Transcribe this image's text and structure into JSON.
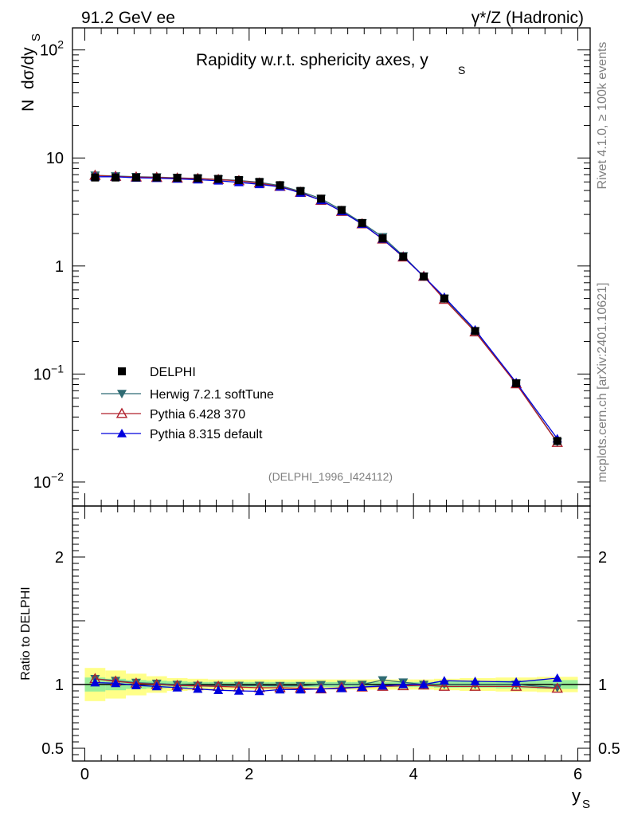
{
  "header": {
    "left_title": "91.2 GeV ee",
    "right_title": "γ*/Z (Hadronic)"
  },
  "side_labels": {
    "rivet": "Rivet 4.1.0, ≥ 100k events",
    "mcplots": "mcplots.cern.ch [arXiv:2401.10621]"
  },
  "chart_data": {
    "type": "line",
    "title": "Rapidity w.r.t. sphericity axes, y",
    "title_subscript": "S",
    "analysis_id": "(DELPHI_1996_I424112)",
    "ylabel_main_prefix": "N",
    "ylabel_main": "dσ/dy",
    "ylabel_main_subscript": "S",
    "ylabel_ratio": "Ratio to DELPHI",
    "xlabel": "y",
    "xlabel_subscript": "S",
    "xlim": [
      -0.15,
      6.15
    ],
    "ylim_main": [
      0.006,
      160
    ],
    "ylim_ratio": [
      0.4,
      2.4
    ],
    "y_scale_main": "log",
    "x_ticks": [
      "0",
      "2",
      "4",
      "6"
    ],
    "y_ticks_main": [
      {
        "base": "10",
        "exp": "−2"
      },
      {
        "base": "10",
        "exp": "−1"
      },
      {
        "base": "1",
        "exp": ""
      },
      {
        "base": "10",
        "exp": ""
      },
      {
        "base": "10",
        "exp": "2"
      }
    ],
    "y_ticks_ratio": [
      "0.5",
      "1",
      "2"
    ],
    "legend_position": "lower-left",
    "x": [
      0.125,
      0.375,
      0.625,
      0.875,
      1.125,
      1.375,
      1.625,
      1.875,
      2.125,
      2.375,
      2.625,
      2.875,
      3.125,
      3.375,
      3.625,
      3.875,
      4.125,
      4.375,
      4.75,
      5.25,
      5.75
    ],
    "series": [
      {
        "name": "DELPHI",
        "color": "#000000",
        "marker": "square",
        "values": [
          6.6,
          6.6,
          6.6,
          6.6,
          6.55,
          6.5,
          6.4,
          6.25,
          6.0,
          5.6,
          4.95,
          4.2,
          3.3,
          2.5,
          1.8,
          1.22,
          0.8,
          0.5,
          0.25,
          0.082,
          0.024
        ]
      },
      {
        "name": "Herwig 7.2.1 softTune",
        "color": "#2f6b73",
        "marker": "triangle-down",
        "values": [
          6.9,
          6.8,
          6.7,
          6.65,
          6.55,
          6.45,
          6.35,
          6.2,
          5.95,
          5.55,
          4.9,
          4.2,
          3.3,
          2.5,
          1.86,
          1.24,
          0.8,
          0.5,
          0.25,
          0.082,
          0.0234
        ]
      },
      {
        "name": "Pythia 6.428 370",
        "color": "#b0202c",
        "marker": "triangle-open",
        "values": [
          6.9,
          6.75,
          6.65,
          6.6,
          6.5,
          6.45,
          6.3,
          6.15,
          5.85,
          5.45,
          4.8,
          4.05,
          3.2,
          2.45,
          1.77,
          1.21,
          0.8,
          0.49,
          0.245,
          0.081,
          0.0232
        ]
      },
      {
        "name": "Pythia 8.315 default",
        "color": "#0000dd",
        "marker": "triangle-up",
        "values": [
          6.7,
          6.7,
          6.55,
          6.5,
          6.4,
          6.3,
          6.15,
          5.95,
          5.7,
          5.4,
          4.75,
          4.05,
          3.2,
          2.45,
          1.78,
          1.22,
          0.8,
          0.515,
          0.257,
          0.0835,
          0.0252
        ]
      }
    ],
    "ratio_series": [
      {
        "name": "Herwig 7.2.1 softTune",
        "values": [
          1.045,
          1.03,
          1.015,
          1.008,
          1.0,
          0.992,
          0.992,
          0.992,
          0.992,
          0.99,
          0.99,
          0.998,
          1.0,
          1.0,
          1.035,
          1.018,
          1.0,
          1.0,
          1.0,
          1.0,
          0.975
        ]
      },
      {
        "name": "Pythia 6.428 370",
        "values": [
          1.045,
          1.025,
          1.01,
          1.0,
          0.992,
          0.99,
          0.985,
          0.98,
          0.975,
          0.975,
          0.97,
          0.965,
          0.975,
          0.98,
          0.985,
          0.99,
          0.995,
          0.985,
          0.985,
          0.985,
          0.97
        ]
      },
      {
        "name": "Pythia 8.315 default",
        "values": [
          1.015,
          1.01,
          0.993,
          0.985,
          0.975,
          0.965,
          0.955,
          0.95,
          0.947,
          0.96,
          0.96,
          0.965,
          0.97,
          0.98,
          0.99,
          1.0,
          1.0,
          1.03,
          1.025,
          1.02,
          1.05
        ]
      }
    ],
    "uncertainty_band": {
      "green_half_width": [
        0.055,
        0.045,
        0.035,
        0.03,
        0.025,
        0.02,
        0.02,
        0.02,
        0.02,
        0.02,
        0.02,
        0.02,
        0.02,
        0.02,
        0.02,
        0.02,
        0.02,
        0.025,
        0.025,
        0.03,
        0.035
      ],
      "yellow_half_width": [
        0.13,
        0.11,
        0.085,
        0.065,
        0.05,
        0.045,
        0.04,
        0.04,
        0.04,
        0.04,
        0.04,
        0.04,
        0.04,
        0.04,
        0.04,
        0.04,
        0.04,
        0.045,
        0.05,
        0.055,
        0.06
      ]
    }
  },
  "colors": {
    "band_green": "#99ee99",
    "band_yellow": "#ffff88",
    "axis": "#000000",
    "label_gray": "#808080"
  }
}
